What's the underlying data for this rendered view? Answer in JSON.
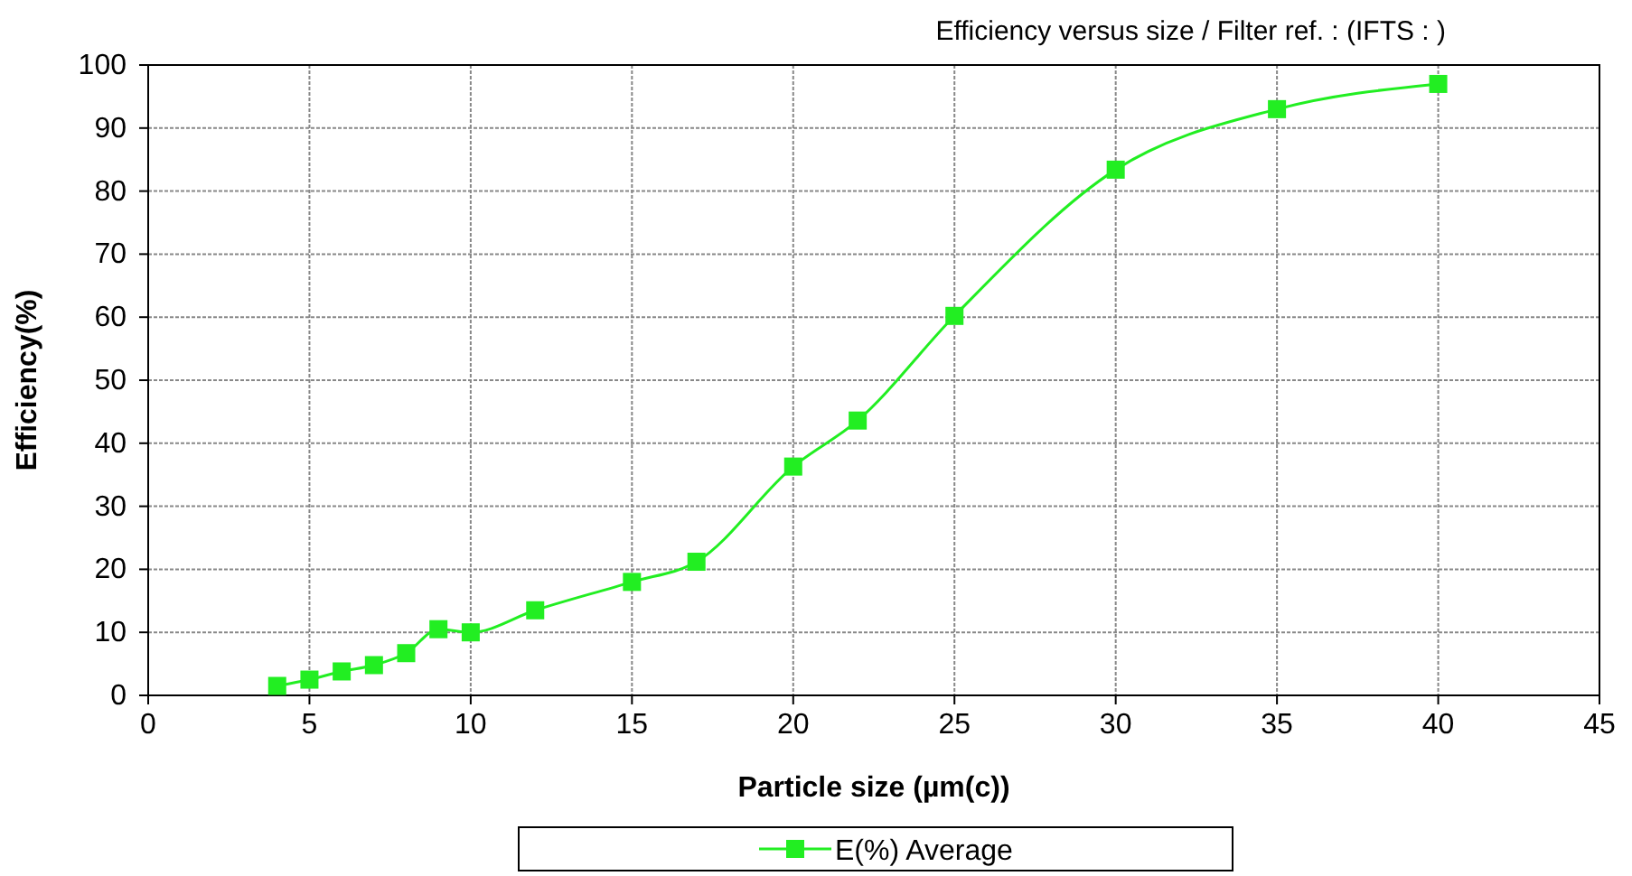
{
  "chart_data": {
    "type": "line",
    "title": "Efficiency versus size / Filter ref. : (IFTS : )",
    "xlabel": "Particle size (µm(c))",
    "ylabel": "Efficiency(%)",
    "x": [
      4,
      5,
      6,
      7,
      8,
      9,
      10,
      12,
      15,
      17,
      20,
      22,
      25,
      30,
      35,
      40
    ],
    "series": [
      {
        "name": "E(%) Average",
        "color": "#22ee22",
        "values": [
          1.5,
          2.5,
          3.8,
          4.8,
          6.7,
          10.5,
          10,
          13.5,
          18,
          21.2,
          36.3,
          43.6,
          60.2,
          83.4,
          93,
          97
        ]
      }
    ],
    "xlim": [
      0,
      45
    ],
    "xticks": [
      0,
      5,
      10,
      15,
      20,
      25,
      30,
      35,
      40,
      45
    ],
    "ylim": [
      0,
      100
    ],
    "yticks": [
      0,
      10,
      20,
      30,
      40,
      50,
      60,
      70,
      80,
      90,
      100
    ],
    "grid": true,
    "legend": "bottom",
    "marker": "square",
    "line_style": "solid"
  }
}
